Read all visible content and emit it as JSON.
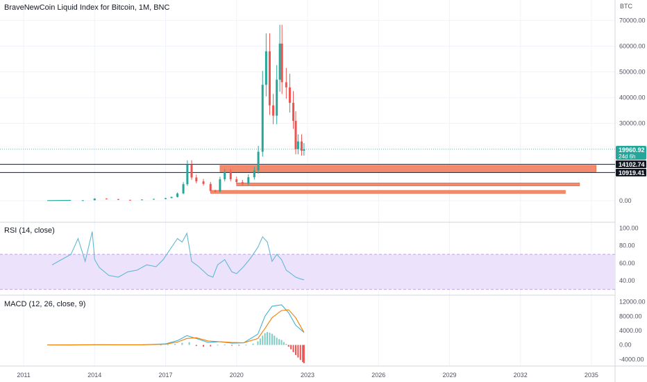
{
  "header": {
    "title": "BraveNewCoin Liquid Index for Bitcoin, 1M, BNC",
    "currency": "BTC"
  },
  "colors": {
    "up": "#26a69a",
    "down": "#ef5350",
    "zone": "#f28b6d",
    "rsi_line": "#62b8d3",
    "rsi_band": "#ece2fc",
    "macd_line": "#3fb2d4",
    "signal_line": "#f57c00",
    "price_tag": "#26a69a",
    "level_tag": "#131722"
  },
  "price_tag": {
    "value": "19960.92",
    "countdown": "24d 6h"
  },
  "level_tags": [
    "14102.74",
    "10919.41"
  ],
  "chart_data": [
    {
      "type": "candlestick",
      "title": "BraveNewCoin Liquid Index for Bitcoin, 1M, BNC",
      "ylabel": "BTC",
      "ylim": [
        -3000,
        72000
      ],
      "xlim": [
        2010.0,
        2036.0
      ],
      "x_ticks": [
        "2011",
        "2014",
        "2017",
        "2020",
        "2023",
        "2026",
        "2029",
        "2032",
        "2035"
      ],
      "y_ticks": [
        "70000.00",
        "60000.00",
        "50000.00",
        "40000.00",
        "30000.00",
        "0.00"
      ],
      "last_price": 19960.92,
      "horizontal_levels": [
        14102.74,
        10919.41
      ],
      "zones": [
        {
          "x_start": 2019.3,
          "x_end": 2035.2,
          "y_low": 11200,
          "y_high": 13700
        },
        {
          "x_start": 2020.0,
          "x_end": 2034.5,
          "y_low": 5700,
          "y_high": 6900
        },
        {
          "x_start": 2018.9,
          "x_end": 2033.9,
          "y_low": 2800,
          "y_high": 4000
        }
      ],
      "series": [
        {
          "x": [
            2013.0,
            2013.5,
            2014.0,
            2014.5,
            2015.0,
            2015.5,
            2016.0,
            2016.5,
            2017.0,
            2017.25,
            2017.5,
            2017.75,
            2017.92,
            2018.1,
            2018.3,
            2018.6,
            2018.9,
            2019.1,
            2019.3,
            2019.5,
            2019.75,
            2020.0,
            2020.25,
            2020.5,
            2020.75,
            2020.92,
            2021.1,
            2021.25,
            2021.4,
            2021.55,
            2021.7,
            2021.83,
            2021.92,
            2022.1,
            2022.25,
            2022.4,
            2022.5,
            2022.6,
            2022.75,
            2022.85
          ],
          "values": [
            100,
            150,
            800,
            600,
            300,
            250,
            430,
            650,
            1000,
            1400,
            2800,
            6400,
            14000,
            9000,
            7500,
            6500,
            3800,
            3600,
            8300,
            11000,
            8300,
            7200,
            6600,
            9100,
            11700,
            19000,
            45000,
            58000,
            37000,
            33000,
            47000,
            61000,
            46000,
            44000,
            38000,
            31000,
            20000,
            23000,
            19400,
            19960
          ]
        }
      ]
    },
    {
      "type": "line",
      "title": "RSI (14, close)",
      "ylim": [
        25,
        105
      ],
      "y_ticks": [
        "100.00",
        "80.00",
        "60.00",
        "40.00"
      ],
      "band": [
        30,
        70
      ],
      "series": [
        {
          "x": [
            2012.2,
            2012.6,
            2013.0,
            2013.3,
            2013.6,
            2013.9,
            2014.0,
            2014.2,
            2014.6,
            2015.0,
            2015.4,
            2015.8,
            2016.2,
            2016.6,
            2016.9,
            2017.2,
            2017.5,
            2017.7,
            2017.9,
            2018.1,
            2018.4,
            2018.8,
            2019.0,
            2019.2,
            2019.5,
            2019.8,
            2020.0,
            2020.3,
            2020.6,
            2020.9,
            2021.1,
            2021.3,
            2021.5,
            2021.7,
            2021.9,
            2022.1,
            2022.3,
            2022.5,
            2022.7,
            2022.85
          ],
          "values": [
            58,
            64,
            70,
            88,
            62,
            96,
            64,
            55,
            46,
            44,
            50,
            52,
            58,
            56,
            64,
            76,
            88,
            84,
            94,
            62,
            56,
            46,
            44,
            58,
            64,
            50,
            48,
            56,
            66,
            78,
            90,
            84,
            62,
            70,
            64,
            52,
            48,
            44,
            42,
            41
          ]
        }
      ]
    },
    {
      "type": "line",
      "title": "MACD (12, 26, close, 9)",
      "ylim": [
        -5500,
        13500
      ],
      "y_ticks": [
        "12000.00",
        "8000.00",
        "4000.00",
        "0.00",
        "-4000.00"
      ],
      "series": [
        {
          "name": "MACD",
          "x": [
            2012.0,
            2013.0,
            2014.0,
            2015.0,
            2016.0,
            2017.0,
            2017.5,
            2017.9,
            2018.3,
            2018.8,
            2019.3,
            2019.8,
            2020.3,
            2020.9,
            2021.2,
            2021.5,
            2021.9,
            2022.2,
            2022.5,
            2022.85
          ],
          "values": [
            0,
            20,
            60,
            40,
            50,
            300,
            1200,
            2600,
            1800,
            700,
            900,
            500,
            600,
            3000,
            8000,
            10800,
            11200,
            9000,
            5500,
            3500
          ]
        },
        {
          "name": "Signal",
          "x": [
            2012.0,
            2013.0,
            2014.0,
            2015.0,
            2016.0,
            2017.0,
            2017.5,
            2017.9,
            2018.3,
            2018.8,
            2019.3,
            2019.8,
            2020.3,
            2020.9,
            2021.2,
            2021.5,
            2021.9,
            2022.2,
            2022.5,
            2022.85
          ],
          "values": [
            0,
            15,
            50,
            45,
            45,
            200,
            800,
            1800,
            2000,
            1100,
            900,
            700,
            600,
            1800,
            4600,
            7600,
            9600,
            9800,
            7600,
            3500
          ]
        },
        {
          "name": "Histogram",
          "x": [
            2016.8,
            2017.1,
            2017.4,
            2017.7,
            2018.0,
            2018.3,
            2018.6,
            2018.9,
            2019.2,
            2019.5,
            2019.8,
            2020.1,
            2020.4,
            2020.7,
            2020.9,
            2021.0,
            2021.1,
            2021.2,
            2021.3,
            2021.4,
            2021.5,
            2021.6,
            2021.7,
            2021.8,
            2021.9,
            2022.0,
            2022.1,
            2022.2,
            2022.3,
            2022.4,
            2022.5,
            2022.6,
            2022.7,
            2022.8,
            2022.85
          ],
          "values": [
            50,
            150,
            300,
            600,
            800,
            -300,
            -500,
            -400,
            50,
            120,
            -150,
            -120,
            60,
            400,
            1000,
            1800,
            2600,
            3300,
            3600,
            3400,
            3100,
            2600,
            2000,
            1600,
            1400,
            800,
            300,
            -500,
            -1200,
            -2000,
            -2800,
            -3500,
            -4200,
            -4800,
            -5100
          ]
        }
      ]
    }
  ]
}
